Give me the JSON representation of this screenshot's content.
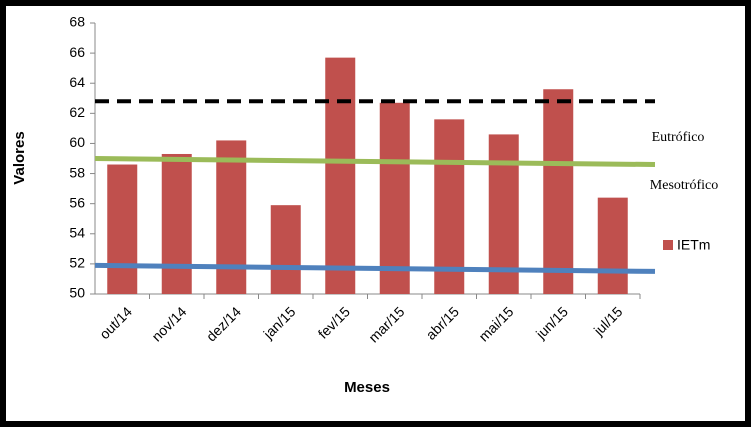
{
  "chart_data": {
    "type": "bar",
    "y_label": "Valores",
    "x_label": "Meses",
    "categories": [
      "out/14",
      "nov/14",
      "dez/14",
      "jan/15",
      "fev/15",
      "mar/15",
      "abr/15",
      "mai/15",
      "jun/15",
      "jul/15"
    ],
    "series": [
      {
        "name": "IETm",
        "color": "#c0504d",
        "values": [
          58.6,
          59.3,
          60.2,
          55.9,
          65.7,
          62.7,
          61.6,
          60.6,
          63.6,
          56.4
        ]
      }
    ],
    "ylim": [
      50,
      68
    ],
    "yticks": [
      50,
      52,
      54,
      56,
      58,
      60,
      62,
      64,
      66,
      68
    ],
    "reference_lines": [
      {
        "color": "#000000",
        "dashed": true,
        "values": [
          62.8,
          62.8
        ]
      },
      {
        "color": "#9bbb59",
        "dashed": false,
        "values": [
          59.0,
          58.6
        ]
      },
      {
        "color": "#4f81bd",
        "dashed": false,
        "values": [
          51.9,
          51.5
        ]
      }
    ],
    "annotations": [
      "Eutrófico",
      "Mesotrófico"
    ]
  }
}
